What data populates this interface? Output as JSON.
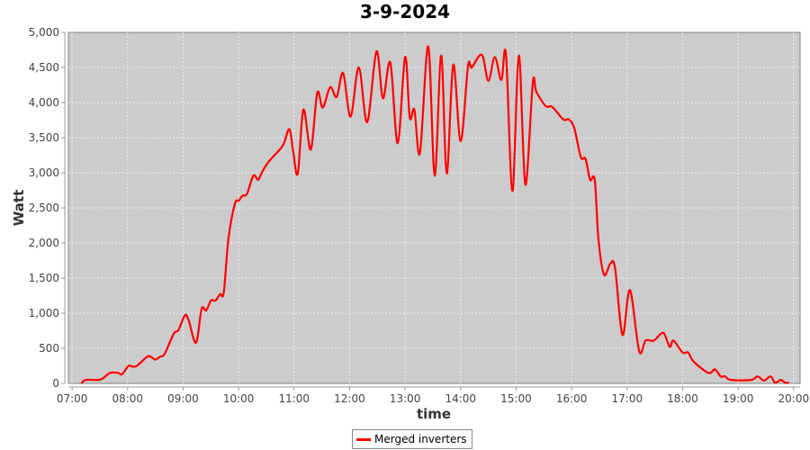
{
  "chart_data": {
    "type": "line",
    "title": "3-9-2024",
    "xlabel": "time",
    "ylabel": "Watt",
    "xlim": [
      "06:56",
      "20:07"
    ],
    "ylim": [
      0,
      5000
    ],
    "x_ticks": [
      "07:00",
      "08:00",
      "09:00",
      "10:00",
      "11:00",
      "12:00",
      "13:00",
      "14:00",
      "15:00",
      "16:00",
      "17:00",
      "18:00",
      "19:00",
      "20:00"
    ],
    "y_ticks": [
      "0",
      "500",
      "1,000",
      "1,500",
      "2,000",
      "2,500",
      "3,000",
      "3,500",
      "4,000",
      "4,500",
      "5,000"
    ],
    "y_tick_values": [
      0,
      500,
      1000,
      1500,
      2000,
      2500,
      3000,
      3500,
      4000,
      4500,
      5000
    ],
    "grid": true,
    "legend_placement": "bottom",
    "plot_background": "#cccccc",
    "series": [
      {
        "name": "Merged inverters",
        "color": "#ff0000",
        "points": [
          [
            "07:10",
            0
          ],
          [
            "07:15",
            50
          ],
          [
            "07:29",
            50
          ],
          [
            "07:34",
            80
          ],
          [
            "07:41",
            150
          ],
          [
            "07:50",
            150
          ],
          [
            "07:54",
            130
          ],
          [
            "08:01",
            250
          ],
          [
            "08:05",
            240
          ],
          [
            "08:10",
            250
          ],
          [
            "08:21",
            380
          ],
          [
            "08:25",
            380
          ],
          [
            "08:30",
            340
          ],
          [
            "08:35",
            380
          ],
          [
            "08:40",
            420
          ],
          [
            "08:50",
            710
          ],
          [
            "08:55",
            760
          ],
          [
            "09:02",
            970
          ],
          [
            "09:06",
            900
          ],
          [
            "09:14",
            580
          ],
          [
            "09:20",
            1060
          ],
          [
            "09:25",
            1040
          ],
          [
            "09:30",
            1180
          ],
          [
            "09:35",
            1180
          ],
          [
            "09:40",
            1270
          ],
          [
            "09:44",
            1300
          ],
          [
            "09:49",
            2060
          ],
          [
            "09:56",
            2560
          ],
          [
            "10:00",
            2600
          ],
          [
            "10:04",
            2670
          ],
          [
            "10:09",
            2700
          ],
          [
            "10:16",
            2960
          ],
          [
            "10:21",
            2900
          ],
          [
            "10:25",
            3000
          ],
          [
            "10:32",
            3150
          ],
          [
            "10:45",
            3340
          ],
          [
            "10:49",
            3420
          ],
          [
            "10:55",
            3620
          ],
          [
            "10:59",
            3300
          ],
          [
            "11:04",
            2990
          ],
          [
            "11:10",
            3900
          ],
          [
            "11:18",
            3330
          ],
          [
            "11:25",
            4140
          ],
          [
            "11:31",
            3930
          ],
          [
            "11:39",
            4220
          ],
          [
            "11:46",
            4080
          ],
          [
            "11:53",
            4420
          ],
          [
            "12:01",
            3800
          ],
          [
            "12:10",
            4500
          ],
          [
            "12:19",
            3720
          ],
          [
            "12:29",
            4730
          ],
          [
            "12:36",
            4060
          ],
          [
            "12:44",
            4570
          ],
          [
            "12:52",
            3420
          ],
          [
            "13:00",
            4650
          ],
          [
            "13:05",
            3790
          ],
          [
            "13:10",
            3900
          ],
          [
            "13:16",
            3280
          ],
          [
            "13:25",
            4800
          ],
          [
            "13:32",
            2960
          ],
          [
            "13:39",
            4670
          ],
          [
            "13:45",
            2990
          ],
          [
            "13:52",
            4540
          ],
          [
            "14:00",
            3450
          ],
          [
            "14:08",
            4520
          ],
          [
            "14:12",
            4500
          ],
          [
            "14:23",
            4680
          ],
          [
            "14:30",
            4310
          ],
          [
            "14:37",
            4650
          ],
          [
            "14:44",
            4320
          ],
          [
            "14:49",
            4690
          ],
          [
            "14:56",
            2740
          ],
          [
            "15:03",
            4670
          ],
          [
            "15:10",
            2830
          ],
          [
            "15:18",
            4280
          ],
          [
            "15:22",
            4150
          ],
          [
            "15:32",
            3950
          ],
          [
            "15:39",
            3940
          ],
          [
            "15:51",
            3760
          ],
          [
            "15:57",
            3760
          ],
          [
            "16:03",
            3630
          ],
          [
            "16:10",
            3220
          ],
          [
            "16:15",
            3200
          ],
          [
            "16:20",
            2900
          ],
          [
            "16:25",
            2900
          ],
          [
            "16:29",
            2060
          ],
          [
            "16:35",
            1550
          ],
          [
            "16:42",
            1710
          ],
          [
            "16:47",
            1640
          ],
          [
            "16:55",
            690
          ],
          [
            "17:03",
            1330
          ],
          [
            "17:13",
            460
          ],
          [
            "17:20",
            610
          ],
          [
            "17:29",
            610
          ],
          [
            "17:39",
            720
          ],
          [
            "17:46",
            520
          ],
          [
            "17:50",
            610
          ],
          [
            "18:00",
            440
          ],
          [
            "18:06",
            440
          ],
          [
            "18:12",
            310
          ],
          [
            "18:28",
            150
          ],
          [
            "18:35",
            200
          ],
          [
            "18:41",
            100
          ],
          [
            "18:46",
            100
          ],
          [
            "18:52",
            50
          ],
          [
            "19:14",
            50
          ],
          [
            "19:21",
            100
          ],
          [
            "19:28",
            40
          ],
          [
            "19:35",
            100
          ],
          [
            "19:40",
            10
          ],
          [
            "19:46",
            50
          ],
          [
            "19:51",
            10
          ],
          [
            "19:55",
            10
          ]
        ]
      }
    ]
  }
}
